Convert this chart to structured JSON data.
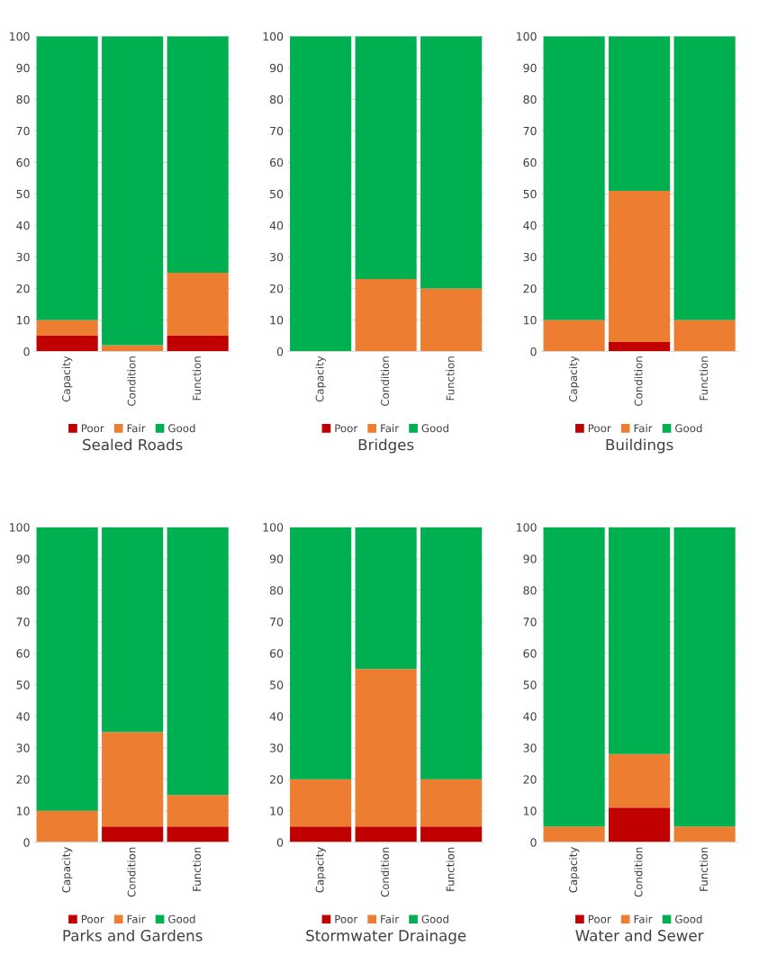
{
  "chart_data": [
    {
      "type": "bar",
      "title": "Sealed Roads",
      "stacked": true,
      "categories": [
        "Capacity",
        "Condition",
        "Function"
      ],
      "ylim": [
        0,
        100
      ],
      "yticks": [
        0,
        10,
        20,
        30,
        40,
        50,
        60,
        70,
        80,
        90,
        100
      ],
      "grid": "y",
      "legend": "bottom",
      "series": [
        {
          "name": "Poor",
          "color": "#c00000",
          "values": [
            5,
            0,
            5
          ]
        },
        {
          "name": "Fair",
          "color": "#ed7d31",
          "values": [
            5,
            2,
            20
          ]
        },
        {
          "name": "Good",
          "color": "#00b050",
          "values": [
            90,
            98,
            75
          ]
        }
      ]
    },
    {
      "type": "bar",
      "title": "Bridges",
      "stacked": true,
      "categories": [
        "Capacity",
        "Condition",
        "Function"
      ],
      "ylim": [
        0,
        100
      ],
      "yticks": [
        0,
        10,
        20,
        30,
        40,
        50,
        60,
        70,
        80,
        90,
        100
      ],
      "grid": "y",
      "legend": "bottom",
      "series": [
        {
          "name": "Poor",
          "color": "#c00000",
          "values": [
            0,
            0,
            0
          ]
        },
        {
          "name": "Fair",
          "color": "#ed7d31",
          "values": [
            0,
            23,
            20
          ]
        },
        {
          "name": "Good",
          "color": "#00b050",
          "values": [
            100,
            77,
            80
          ]
        }
      ]
    },
    {
      "type": "bar",
      "title": "Buildings",
      "stacked": true,
      "categories": [
        "Capacity",
        "Condition",
        "Function"
      ],
      "ylim": [
        0,
        100
      ],
      "yticks": [
        0,
        10,
        20,
        30,
        40,
        50,
        60,
        70,
        80,
        90,
        100
      ],
      "grid": "y",
      "legend": "bottom",
      "series": [
        {
          "name": "Poor",
          "color": "#c00000",
          "values": [
            0,
            3,
            0
          ]
        },
        {
          "name": "Fair",
          "color": "#ed7d31",
          "values": [
            10,
            48,
            10
          ]
        },
        {
          "name": "Good",
          "color": "#00b050",
          "values": [
            90,
            49,
            90
          ]
        }
      ]
    },
    {
      "type": "bar",
      "title": "Parks and Gardens",
      "stacked": true,
      "categories": [
        "Capacity",
        "Condition",
        "Function"
      ],
      "ylim": [
        0,
        100
      ],
      "yticks": [
        0,
        10,
        20,
        30,
        40,
        50,
        60,
        70,
        80,
        90,
        100
      ],
      "grid": "y",
      "legend": "bottom",
      "series": [
        {
          "name": "Poor",
          "color": "#c00000",
          "values": [
            0,
            5,
            5
          ]
        },
        {
          "name": "Fair",
          "color": "#ed7d31",
          "values": [
            10,
            30,
            10
          ]
        },
        {
          "name": "Good",
          "color": "#00b050",
          "values": [
            90,
            65,
            85
          ]
        }
      ]
    },
    {
      "type": "bar",
      "title": "Stormwater Drainage",
      "stacked": true,
      "categories": [
        "Capacity",
        "Condition",
        "Function"
      ],
      "ylim": [
        0,
        100
      ],
      "yticks": [
        0,
        10,
        20,
        30,
        40,
        50,
        60,
        70,
        80,
        90,
        100
      ],
      "grid": "y",
      "legend": "bottom",
      "series": [
        {
          "name": "Poor",
          "color": "#c00000",
          "values": [
            5,
            5,
            5
          ]
        },
        {
          "name": "Fair",
          "color": "#ed7d31",
          "values": [
            15,
            50,
            15
          ]
        },
        {
          "name": "Good",
          "color": "#00b050",
          "values": [
            80,
            45,
            80
          ]
        }
      ]
    },
    {
      "type": "bar",
      "title": "Water and Sewer",
      "stacked": true,
      "categories": [
        "Capacity",
        "Condition",
        "Function"
      ],
      "ylim": [
        0,
        100
      ],
      "yticks": [
        0,
        10,
        20,
        30,
        40,
        50,
        60,
        70,
        80,
        90,
        100
      ],
      "grid": "y",
      "legend": "bottom",
      "series": [
        {
          "name": "Poor",
          "color": "#c00000",
          "values": [
            0,
            11,
            0
          ]
        },
        {
          "name": "Fair",
          "color": "#ed7d31",
          "values": [
            5,
            17,
            5
          ]
        },
        {
          "name": "Good",
          "color": "#00b050",
          "values": [
            95,
            72,
            95
          ]
        }
      ]
    }
  ]
}
